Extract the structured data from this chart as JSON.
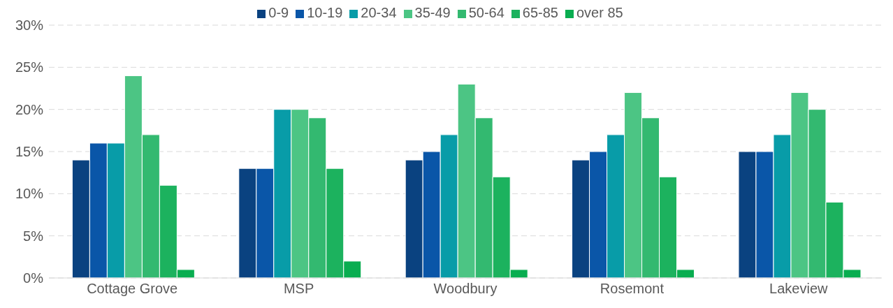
{
  "chart_data": {
    "type": "bar",
    "categories": [
      "Cottage Grove",
      "MSP",
      "Woodbury",
      "Rosemont",
      "Lakeview"
    ],
    "series": [
      {
        "name": "0-9",
        "color": "#0a4280",
        "values": [
          14,
          13,
          14,
          14,
          15
        ]
      },
      {
        "name": "10-19",
        "color": "#0a56a8",
        "values": [
          16,
          13,
          15,
          15,
          15
        ]
      },
      {
        "name": "20-34",
        "color": "#089ca8",
        "values": [
          16,
          20,
          17,
          17,
          17
        ]
      },
      {
        "name": "35-49",
        "color": "#4cc584",
        "values": [
          24,
          20,
          23,
          22,
          22
        ]
      },
      {
        "name": "50-64",
        "color": "#33b970",
        "values": [
          17,
          19,
          19,
          19,
          20
        ]
      },
      {
        "name": "65-85",
        "color": "#1cb25e",
        "values": [
          11,
          13,
          12,
          12,
          9
        ]
      },
      {
        "name": "over 85",
        "color": "#09ad50",
        "values": [
          1,
          2,
          1,
          1,
          1
        ]
      }
    ],
    "ylim": [
      0,
      30
    ],
    "yticks": [
      {
        "value": 0,
        "label": "0%"
      },
      {
        "value": 5,
        "label": "5%"
      },
      {
        "value": 10,
        "label": "10%"
      },
      {
        "value": 15,
        "label": "15%"
      },
      {
        "value": 20,
        "label": "20%"
      },
      {
        "value": 25,
        "label": "25%"
      },
      {
        "value": 30,
        "label": "30%"
      }
    ],
    "grid": "y",
    "legend": "top"
  }
}
